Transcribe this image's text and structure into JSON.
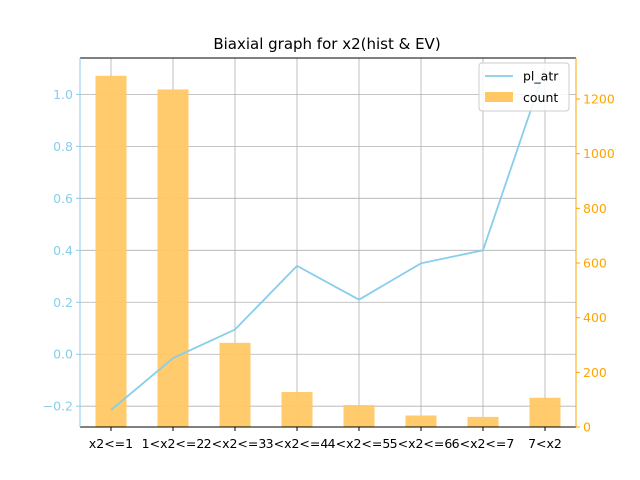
{
  "chart_data": {
    "type": "bar",
    "title": "Biaxial graph for x2(hist & EV)",
    "categories": [
      "x2<=1",
      "1<x2<=2",
      "2<x2<=3",
      "3<x2<=4",
      "4<x2<=5",
      "5<x2<=6",
      "6<x2<=7",
      "7<x2"
    ],
    "series": [
      {
        "name": "count",
        "type": "bar",
        "axis": "right",
        "color": "#ffc864",
        "values": [
          1285,
          1235,
          308,
          128,
          80,
          42,
          37,
          107
        ]
      },
      {
        "name": "pl_atr",
        "type": "line",
        "axis": "left",
        "color": "#87ceeb",
        "values": [
          -0.215,
          -0.015,
          0.095,
          0.34,
          0.21,
          0.35,
          0.4,
          1.1
        ]
      }
    ],
    "y_left": {
      "lim": [
        -0.28,
        1.14
      ],
      "ticks": [
        -0.2,
        0.0,
        0.2,
        0.4,
        0.6,
        0.8,
        1.0
      ],
      "tick_labels": [
        "−0.2",
        "0.0",
        "0.2",
        "0.4",
        "0.6",
        "0.8",
        "1.0"
      ],
      "color": "#87ceeb"
    },
    "y_right": {
      "lim": [
        0,
        1350
      ],
      "ticks": [
        0,
        200,
        400,
        600,
        800,
        1000,
        1200
      ],
      "color": "#ffa500"
    },
    "grid": true,
    "legend": "top-right"
  }
}
